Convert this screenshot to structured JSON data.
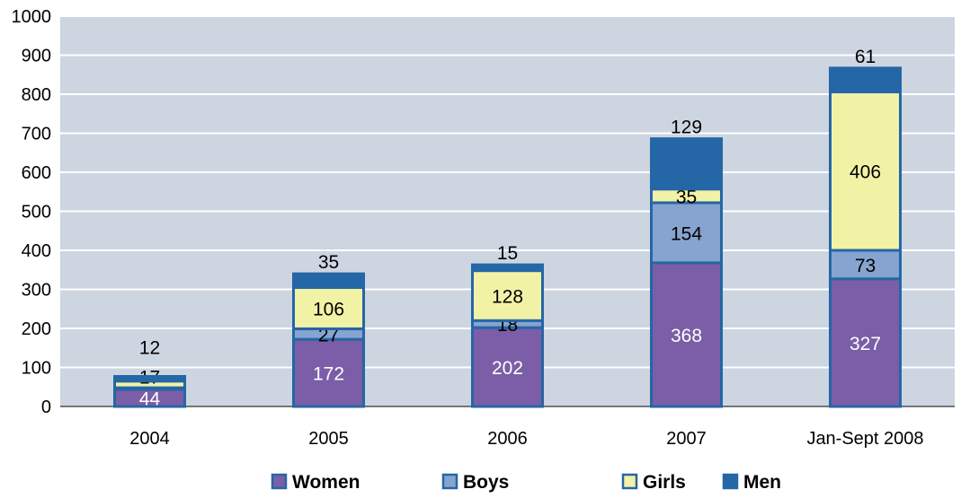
{
  "chart_data": {
    "type": "bar",
    "stacked": true,
    "title": "",
    "xlabel": "",
    "ylabel": "",
    "ylim": [
      0,
      1000
    ],
    "yticks": [
      "0",
      "100",
      "200",
      "300",
      "400",
      "500",
      "600",
      "700",
      "800",
      "900",
      "1000"
    ],
    "categories": [
      "2004",
      "2005",
      "2006",
      "2007",
      "Jan-Sept 2008"
    ],
    "series": [
      {
        "name": "Women",
        "color": "#7b5ea7",
        "label_color": "#ffffff",
        "values": [
          44,
          172,
          202,
          368,
          327
        ],
        "labels": [
          "44",
          "172",
          "202",
          "368",
          "327"
        ]
      },
      {
        "name": "Boys",
        "color": "#87a3cf",
        "label_color": "#000000",
        "values": [
          4,
          27,
          18,
          154,
          73
        ],
        "labels": [
          "",
          "27",
          "18",
          "154",
          "73"
        ]
      },
      {
        "name": "Girls",
        "color": "#f2f2a6",
        "label_color": "#000000",
        "values": [
          17,
          106,
          128,
          35,
          406
        ],
        "labels": [
          "17",
          "106",
          "128",
          "35",
          "406"
        ]
      },
      {
        "name": "Men",
        "color": "#2566a6",
        "label_color": "#000000",
        "values": [
          12,
          35,
          15,
          129,
          61
        ],
        "labels": [
          "12",
          "35",
          "15",
          "129",
          "61"
        ]
      }
    ],
    "legend_position": "bottom",
    "grid": true
  }
}
